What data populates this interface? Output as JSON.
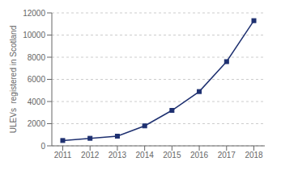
{
  "chart_data": {
    "type": "line",
    "x": [
      2011,
      2012,
      2013,
      2014,
      2015,
      2016,
      2017,
      2018
    ],
    "values": [
      480,
      680,
      870,
      1800,
      3200,
      4900,
      7600,
      11300
    ],
    "color": "#1e3070",
    "marker": "square",
    "ylabel": "ULEVs  registered in Scotland",
    "xlim": [
      2010.6,
      2018.4
    ],
    "xticks": [
      2011,
      2012,
      2013,
      2014,
      2015,
      2016,
      2017,
      2018
    ],
    "ylim": [
      0,
      12000
    ],
    "yticks": [
      0,
      2000,
      4000,
      6000,
      8000,
      10000,
      12000
    ],
    "grid": "y"
  }
}
